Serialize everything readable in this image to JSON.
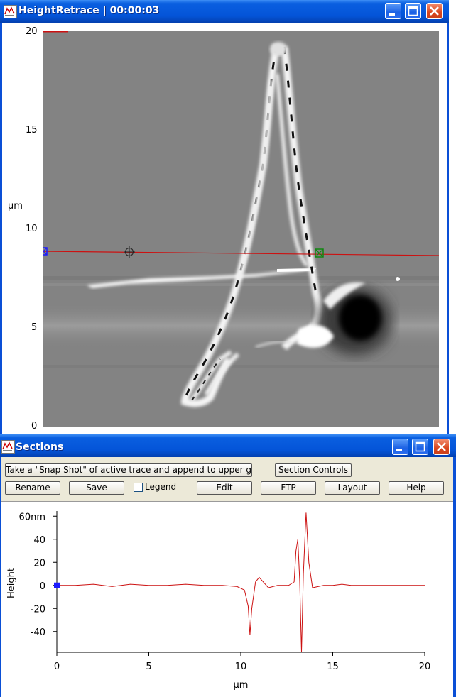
{
  "height_window": {
    "title": "HeightRetrace | 00:00:03",
    "axis_unit": "µm",
    "yticks": [
      "20",
      "15",
      "10",
      "5",
      "0"
    ],
    "buttons": {
      "minimize": "minimize",
      "maximize": "maximize",
      "close": "close"
    }
  },
  "sections_window": {
    "title": "Sections",
    "toolbar": {
      "snapshot_label": "Take a \"Snap Shot\" of active trace and append to upper graph",
      "section_controls_label": "Section Controls",
      "rename_label": "Rename",
      "save_label": "Save",
      "legend_label": "Legend",
      "edit_label": "Edit",
      "ftp_label": "FTP",
      "layout_label": "Layout",
      "help_label": "Help"
    }
  },
  "colors": {
    "trace": "#cc1111",
    "title_bar": "#0454d8",
    "cursor_a": "#1a1aff",
    "cursor_b": "#118811"
  },
  "chart_data": {
    "type": "line",
    "title": "",
    "xlabel": "µm",
    "ylabel": "Height",
    "xlim": [
      0,
      20
    ],
    "ylim": [
      -58,
      62
    ],
    "xticks": [
      "0",
      "5",
      "10",
      "15",
      "20"
    ],
    "yticks": [
      "60nm",
      "40",
      "20",
      "0",
      "-20",
      "-40"
    ],
    "series": [
      {
        "x": [
          0,
          1,
          2,
          3,
          4,
          5,
          6,
          7,
          8,
          9,
          9.8,
          10.2,
          10.4,
          10.5,
          10.6,
          10.8,
          11,
          11.5,
          12,
          12.6,
          12.9,
          13.0,
          13.1,
          13.2,
          13.3,
          13.4,
          13.55,
          13.7,
          13.9,
          14.5,
          15,
          15.5,
          16,
          17,
          18,
          19,
          20
        ],
        "y": [
          0,
          0,
          1,
          -1,
          1,
          0,
          0,
          1,
          0,
          0,
          -1,
          -4,
          -18,
          -43,
          -20,
          3,
          7,
          -2,
          0,
          0,
          3,
          30,
          40,
          5,
          -58,
          10,
          63,
          20,
          -2,
          0,
          0,
          1,
          0,
          0,
          0,
          0,
          0
        ]
      }
    ]
  }
}
